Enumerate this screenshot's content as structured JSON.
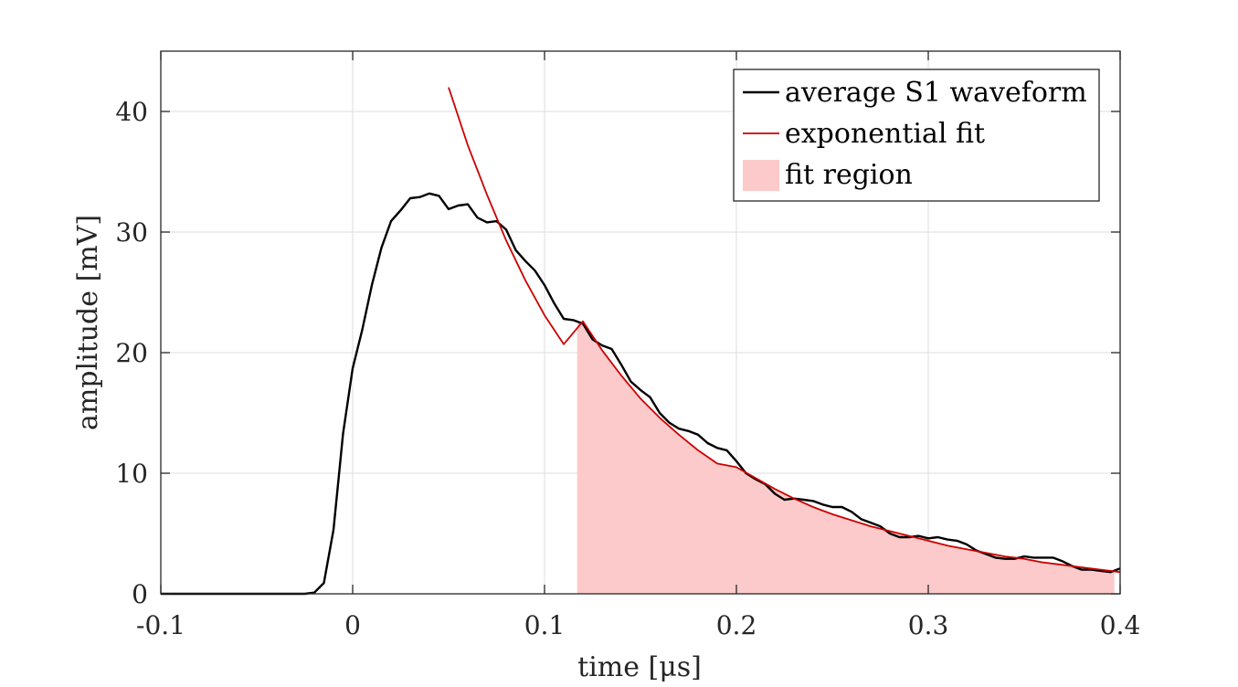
{
  "chart_data": {
    "type": "line",
    "title": "",
    "xlabel": "time [μs]",
    "ylabel": "amplitude [mV]",
    "xlim": [
      -0.1,
      0.4
    ],
    "ylim": [
      0,
      45
    ],
    "xticks": [
      -0.1,
      0,
      0.1,
      0.2,
      0.3,
      0.4
    ],
    "xtick_labels": [
      "-0.1",
      "0",
      "0.1",
      "0.2",
      "0.3",
      "0.4"
    ],
    "yticks": [
      0,
      10,
      20,
      30,
      40
    ],
    "ytick_labels": [
      "0",
      "10",
      "20",
      "30",
      "40"
    ],
    "grid": true,
    "legend_position": "top-right",
    "legend": [
      {
        "label": "average S1 waveform",
        "kind": "line",
        "color": "#000000"
      },
      {
        "label": "exponential fit",
        "kind": "line",
        "color": "#cc0000"
      },
      {
        "label": "fit region",
        "kind": "patch",
        "color": "#fccaca"
      }
    ],
    "series": [
      {
        "name": "average S1 waveform",
        "color": "#000000",
        "x": [
          -0.1,
          -0.08,
          -0.06,
          -0.04,
          -0.03,
          -0.025,
          -0.02,
          -0.015,
          -0.01,
          -0.005,
          0,
          0.005,
          0.01,
          0.015,
          0.02,
          0.025,
          0.03,
          0.035,
          0.04,
          0.045,
          0.05,
          0.055,
          0.06,
          0.065,
          0.07,
          0.075,
          0.08,
          0.085,
          0.09,
          0.095,
          0.1,
          0.105,
          0.11,
          0.115,
          0.12,
          0.125,
          0.13,
          0.135,
          0.14,
          0.145,
          0.15,
          0.155,
          0.16,
          0.165,
          0.17,
          0.175,
          0.18,
          0.185,
          0.19,
          0.195,
          0.2,
          0.205,
          0.21,
          0.215,
          0.22,
          0.225,
          0.23,
          0.235,
          0.24,
          0.245,
          0.25,
          0.255,
          0.26,
          0.265,
          0.27,
          0.275,
          0.28,
          0.285,
          0.29,
          0.295,
          0.3,
          0.305,
          0.31,
          0.315,
          0.32,
          0.325,
          0.33,
          0.335,
          0.34,
          0.345,
          0.35,
          0.355,
          0.36,
          0.365,
          0.37,
          0.375,
          0.38,
          0.385,
          0.39,
          0.395,
          0.4
        ],
        "y": [
          0,
          0,
          0,
          0,
          0,
          0,
          0.1,
          0.9,
          5.3,
          13.3,
          18.7,
          21.9,
          25.6,
          28.7,
          30.9,
          31.8,
          32.8,
          32.9,
          33.2,
          33.0,
          31.9,
          32.2,
          32.3,
          31.2,
          30.8,
          30.9,
          30.2,
          28.5,
          27.6,
          26.8,
          25.6,
          24.1,
          22.8,
          22.7,
          22.4,
          21.1,
          20.6,
          20.3,
          19.0,
          17.6,
          16.9,
          16.3,
          15.0,
          14.2,
          13.7,
          13.5,
          13.2,
          12.5,
          12.1,
          11.9,
          11.0,
          10.0,
          9.5,
          9.1,
          8.3,
          7.8,
          7.9,
          7.8,
          7.7,
          7.4,
          7.2,
          7.2,
          6.8,
          6.2,
          5.9,
          5.6,
          5.0,
          4.7,
          4.7,
          4.8,
          4.6,
          4.7,
          4.5,
          4.4,
          4.1,
          3.6,
          3.3,
          3.0,
          2.9,
          2.9,
          3.1,
          3.0,
          3.0,
          3.0,
          2.7,
          2.3,
          2.0,
          2.0,
          1.9,
          1.8,
          2.1
        ]
      },
      {
        "name": "exponential fit",
        "color": "#cc0000",
        "x": [
          0.05,
          0.06,
          0.07,
          0.08,
          0.09,
          0.1,
          0.11,
          0.12,
          0.13,
          0.14,
          0.15,
          0.16,
          0.17,
          0.18,
          0.19,
          0.2,
          0.21,
          0.22,
          0.23,
          0.24,
          0.25,
          0.26,
          0.27,
          0.28,
          0.29,
          0.3,
          0.31,
          0.32,
          0.33,
          0.34,
          0.35,
          0.36,
          0.37,
          0.38,
          0.39,
          0.4
        ],
        "y": [
          42.0,
          37.2,
          33.1,
          29.3,
          26.0,
          23.1,
          20.7,
          22.6,
          20.2,
          18.1,
          16.2,
          14.6,
          13.2,
          11.9,
          10.8,
          10.5,
          9.6,
          8.7,
          7.9,
          7.2,
          6.6,
          6.1,
          5.6,
          5.2,
          4.8,
          4.4,
          4.0,
          3.7,
          3.4,
          3.1,
          2.9,
          2.6,
          2.4,
          2.2,
          2.0,
          1.8
        ]
      }
    ],
    "fit_region": {
      "x_start": 0.117,
      "x_end": 0.397
    }
  }
}
